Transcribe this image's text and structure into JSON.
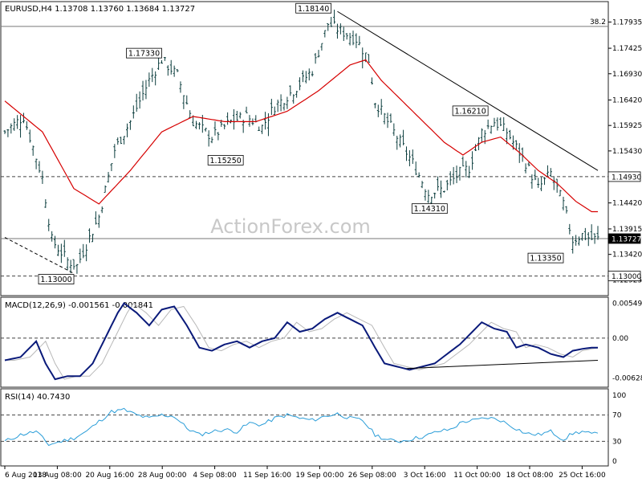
{
  "chart_data": {
    "type": "candlestick",
    "symbol_header": "EURUSD,H4  1.13708 1.13760 1.13684 1.13727",
    "watermark": "ActionForex.com",
    "x_tick_labels": [
      "6 Aug 2018",
      "13 Aug 08:00",
      "20 Aug 16:00",
      "28 Aug 00:00",
      "4 Sep 08:00",
      "11 Sep 16:00",
      "19 Sep 00:00",
      "26 Sep 08:00",
      "3 Oct 16:00",
      "11 Oct 00:00",
      "18 Oct 08:00",
      "25 Oct 16:00"
    ],
    "price_panel": {
      "ylim": [
        1.1265,
        1.183
      ],
      "y_tick_labels": [
        {
          "value": 1.17935,
          "label": "1.17935"
        },
        {
          "value": 1.17425,
          "label": "1.17425"
        },
        {
          "value": 1.1693,
          "label": "1.16930"
        },
        {
          "value": 1.1642,
          "label": "1.16420"
        },
        {
          "value": 1.15925,
          "label": "1.15925"
        },
        {
          "value": 1.1543,
          "label": "1.15430"
        },
        {
          "value": 1.1442,
          "label": "1.14420"
        },
        {
          "value": 1.13915,
          "label": "1.13915"
        },
        {
          "value": 1.1342,
          "label": "1.13420"
        },
        {
          "value": 1.12925,
          "label": "1.12925"
        }
      ],
      "price_tags": [
        {
          "value": 1.1493,
          "label": "1.14930",
          "style": "outline"
        },
        {
          "value": 1.13727,
          "label": "1.13727",
          "style": "filled"
        },
        {
          "value": 1.13,
          "label": "1.13000",
          "style": "outline"
        }
      ],
      "hlines": [
        {
          "value": 1.1785,
          "style": "solid",
          "label": "38.2"
        },
        {
          "value": 1.1493,
          "style": "dashed",
          "label": ""
        },
        {
          "value": 1.13727,
          "style": "solid",
          "label": ""
        },
        {
          "value": 1.13,
          "style": "dashed",
          "label": ""
        }
      ],
      "annotations": [
        {
          "label": "1.18140",
          "bar": 104,
          "value": 1.1814
        },
        {
          "label": "1.17330",
          "bar": 50,
          "value": 1.1733
        },
        {
          "label": "1.15250",
          "bar": 76,
          "value": 1.1525
        },
        {
          "label": "1.16210",
          "bar": 154,
          "value": 1.1621
        },
        {
          "label": "1.14310",
          "bar": 141,
          "value": 1.1431
        },
        {
          "label": "1.13350",
          "bar": 178,
          "value": 1.1335
        },
        {
          "label": "1.13000",
          "bar": 22,
          "value": 1.13
        }
      ],
      "trendlines": [
        {
          "from": {
            "bar": 106,
            "value": 1.1814
          },
          "to": {
            "bar": 189,
            "value": 1.1505
          },
          "style": "solid"
        },
        {
          "from": {
            "bar": 0,
            "value": 1.1375
          },
          "to": {
            "bar": 22,
            "value": 1.1305
          },
          "style": "dashed"
        }
      ],
      "ma_anchors": [
        [
          0,
          1.164
        ],
        [
          12,
          1.158
        ],
        [
          22,
          1.147
        ],
        [
          30,
          1.144
        ],
        [
          40,
          1.1505
        ],
        [
          50,
          1.158
        ],
        [
          60,
          1.161
        ],
        [
          70,
          1.16
        ],
        [
          80,
          1.16
        ],
        [
          90,
          1.162
        ],
        [
          100,
          1.166
        ],
        [
          110,
          1.171
        ],
        [
          115,
          1.172
        ],
        [
          120,
          1.168
        ],
        [
          130,
          1.162
        ],
        [
          140,
          1.156
        ],
        [
          146,
          1.1535
        ],
        [
          152,
          1.156
        ],
        [
          158,
          1.157
        ],
        [
          164,
          1.154
        ],
        [
          170,
          1.1505
        ],
        [
          176,
          1.148
        ],
        [
          182,
          1.1445
        ],
        [
          187,
          1.1425
        ]
      ],
      "price_anchors": [
        [
          0,
          1.158
        ],
        [
          6,
          1.161
        ],
        [
          12,
          1.149
        ],
        [
          15,
          1.137
        ],
        [
          20,
          1.133
        ],
        [
          23,
          1.132
        ],
        [
          30,
          1.1415
        ],
        [
          35,
          1.1545
        ],
        [
          40,
          1.16
        ],
        [
          46,
          1.168
        ],
        [
          50,
          1.172
        ],
        [
          55,
          1.169
        ],
        [
          60,
          1.16
        ],
        [
          66,
          1.157
        ],
        [
          72,
          1.16
        ],
        [
          77,
          1.161
        ],
        [
          82,
          1.159
        ],
        [
          86,
          1.163
        ],
        [
          92,
          1.166
        ],
        [
          98,
          1.17
        ],
        [
          103,
          1.179
        ],
        [
          106,
          1.178
        ],
        [
          112,
          1.176
        ],
        [
          116,
          1.172
        ],
        [
          118,
          1.164
        ],
        [
          124,
          1.158
        ],
        [
          130,
          1.152
        ],
        [
          135,
          1.146
        ],
        [
          140,
          1.147
        ],
        [
          145,
          1.15
        ],
        [
          148,
          1.151
        ],
        [
          152,
          1.158
        ],
        [
          156,
          1.16
        ],
        [
          160,
          1.158
        ],
        [
          166,
          1.152
        ],
        [
          170,
          1.147
        ],
        [
          174,
          1.15
        ],
        [
          178,
          1.144
        ],
        [
          181,
          1.137
        ],
        [
          184,
          1.138
        ],
        [
          187,
          1.1372
        ]
      ]
    },
    "macd_panel": {
      "label": "MACD(12,26,9) -0.001561 -0.001841",
      "ylim": [
        -0.0075,
        0.0062
      ],
      "y_tick_labels": [
        {
          "value": 0.005493,
          "label": "0.005493"
        },
        {
          "value": 0.0,
          "label": "0.00"
        },
        {
          "value": -0.006282,
          "label": "-0.006282"
        }
      ],
      "zero_line": "dashed",
      "trendline": {
        "from": {
          "bar": 128,
          "value": -0.0048
        },
        "to": {
          "bar": 189,
          "value": -0.0035
        }
      },
      "macd_anchors": [
        [
          0,
          -0.0035
        ],
        [
          5,
          -0.003
        ],
        [
          10,
          -0.0005
        ],
        [
          13,
          -0.004
        ],
        [
          16,
          -0.0065
        ],
        [
          20,
          -0.006
        ],
        [
          24,
          -0.006
        ],
        [
          28,
          -0.004
        ],
        [
          32,
          0.0
        ],
        [
          36,
          0.004
        ],
        [
          38,
          0.0055
        ],
        [
          42,
          0.004
        ],
        [
          46,
          0.002
        ],
        [
          50,
          0.0045
        ],
        [
          54,
          0.005
        ],
        [
          58,
          0.002
        ],
        [
          62,
          -0.0015
        ],
        [
          66,
          -0.002
        ],
        [
          70,
          -0.001
        ],
        [
          74,
          -0.0005
        ],
        [
          78,
          -0.0015
        ],
        [
          82,
          -0.0005
        ],
        [
          86,
          0.0
        ],
        [
          90,
          0.0025
        ],
        [
          94,
          0.001
        ],
        [
          98,
          0.0015
        ],
        [
          102,
          0.003
        ],
        [
          106,
          0.004
        ],
        [
          110,
          0.003
        ],
        [
          114,
          0.002
        ],
        [
          118,
          -0.0015
        ],
        [
          121,
          -0.004
        ],
        [
          125,
          -0.0045
        ],
        [
          129,
          -0.005
        ],
        [
          133,
          -0.0045
        ],
        [
          137,
          -0.004
        ],
        [
          141,
          -0.0025
        ],
        [
          145,
          -0.001
        ],
        [
          149,
          0.001
        ],
        [
          152,
          0.0025
        ],
        [
          156,
          0.0015
        ],
        [
          160,
          0.001
        ],
        [
          163,
          -0.0015
        ],
        [
          166,
          -0.001
        ],
        [
          170,
          -0.0015
        ],
        [
          174,
          -0.0025
        ],
        [
          178,
          -0.003
        ],
        [
          181,
          -0.002
        ],
        [
          184,
          -0.0017
        ],
        [
          187,
          -0.0015
        ]
      ],
      "signal_offset": 3
    },
    "rsi_panel": {
      "label": "RSI(14) 40.7430",
      "ylim": [
        0,
        100
      ],
      "y_tick_labels": [
        {
          "value": 100,
          "label": "100"
        },
        {
          "value": 70,
          "label": "70"
        },
        {
          "value": 30,
          "label": "30"
        },
        {
          "value": 0,
          "label": "0"
        }
      ],
      "levels": [
        70,
        30
      ],
      "rsi_anchors": [
        [
          0,
          30
        ],
        [
          5,
          40
        ],
        [
          10,
          45
        ],
        [
          14,
          25
        ],
        [
          18,
          30
        ],
        [
          22,
          35
        ],
        [
          26,
          45
        ],
        [
          30,
          60
        ],
        [
          34,
          75
        ],
        [
          38,
          78
        ],
        [
          42,
          70
        ],
        [
          46,
          65
        ],
        [
          50,
          70
        ],
        [
          54,
          68
        ],
        [
          58,
          50
        ],
        [
          62,
          40
        ],
        [
          66,
          45
        ],
        [
          70,
          48
        ],
        [
          74,
          45
        ],
        [
          78,
          58
        ],
        [
          82,
          55
        ],
        [
          86,
          65
        ],
        [
          90,
          70
        ],
        [
          94,
          65
        ],
        [
          98,
          62
        ],
        [
          102,
          68
        ],
        [
          106,
          72
        ],
        [
          110,
          65
        ],
        [
          114,
          62
        ],
        [
          118,
          40
        ],
        [
          122,
          32
        ],
        [
          126,
          30
        ],
        [
          130,
          34
        ],
        [
          134,
          38
        ],
        [
          138,
          45
        ],
        [
          142,
          48
        ],
        [
          146,
          60
        ],
        [
          150,
          62
        ],
        [
          154,
          66
        ],
        [
          158,
          62
        ],
        [
          162,
          52
        ],
        [
          166,
          42
        ],
        [
          170,
          40
        ],
        [
          174,
          45
        ],
        [
          178,
          33
        ],
        [
          181,
          42
        ],
        [
          184,
          45
        ],
        [
          187,
          41
        ]
      ]
    },
    "bar_count": 190,
    "series_colors": {
      "candle": "#0b3d3d",
      "ma": "#d60000",
      "macd": "#0a1a7a",
      "signal": "#b8b8b8",
      "rsi": "#2a9dd8"
    }
  }
}
